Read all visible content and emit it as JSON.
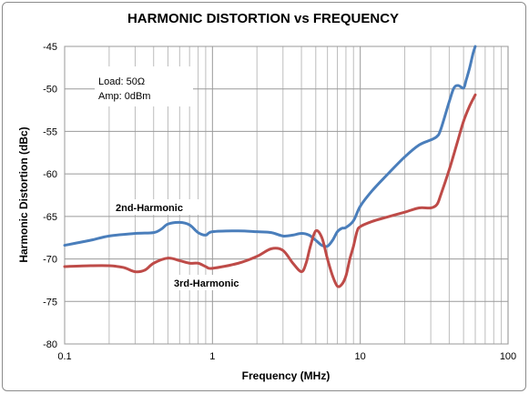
{
  "chart_data": {
    "type": "line",
    "title": "HARMONIC DISTORTION vs FREQUENCY",
    "xlabel": "Frequency (MHz)",
    "ylabel": "Harmonic Distortion (dBc)",
    "x_scale": "log",
    "xlim": [
      0.1,
      100
    ],
    "ylim": [
      -80,
      -45
    ],
    "x_ticks": [
      "0.1",
      "1",
      "10",
      "100"
    ],
    "y_ticks": [
      "-45",
      "-50",
      "-55",
      "-60",
      "-65",
      "-70",
      "-75",
      "-80"
    ],
    "grid": true,
    "annotations": [
      "Load: 50Ω",
      "Amp: 0dBm"
    ],
    "series": [
      {
        "name": "2nd-Harmonic",
        "color": "#4a7ebb",
        "points": [
          [
            0.1,
            -68.4
          ],
          [
            0.15,
            -67.8
          ],
          [
            0.2,
            -67.3
          ],
          [
            0.3,
            -67.0
          ],
          [
            0.4,
            -66.9
          ],
          [
            0.45,
            -66.5
          ],
          [
            0.5,
            -65.9
          ],
          [
            0.6,
            -65.7
          ],
          [
            0.7,
            -66.0
          ],
          [
            0.8,
            -66.9
          ],
          [
            0.9,
            -67.2
          ],
          [
            1.0,
            -66.8
          ],
          [
            1.5,
            -66.7
          ],
          [
            2.0,
            -66.8
          ],
          [
            2.5,
            -66.9
          ],
          [
            3.0,
            -67.3
          ],
          [
            3.5,
            -67.2
          ],
          [
            4.0,
            -67.0
          ],
          [
            4.5,
            -67.2
          ],
          [
            5.0,
            -67.8
          ],
          [
            5.5,
            -68.4
          ],
          [
            6.0,
            -68.5
          ],
          [
            6.5,
            -67.8
          ],
          [
            7.0,
            -66.8
          ],
          [
            7.5,
            -66.4
          ],
          [
            8.0,
            -66.3
          ],
          [
            9.0,
            -65.5
          ],
          [
            10,
            -63.8
          ],
          [
            12,
            -62.0
          ],
          [
            15,
            -60.2
          ],
          [
            20,
            -58.0
          ],
          [
            25,
            -56.6
          ],
          [
            30,
            -56.0
          ],
          [
            33,
            -55.6
          ],
          [
            35,
            -54.8
          ],
          [
            40,
            -51.5
          ],
          [
            43,
            -49.9
          ],
          [
            46,
            -49.6
          ],
          [
            50,
            -49.9
          ],
          [
            52,
            -49.0
          ],
          [
            55,
            -47.5
          ],
          [
            58,
            -45.8
          ],
          [
            60,
            -45.0
          ]
        ]
      },
      {
        "name": "3rd-Harmonic",
        "color": "#be4b48",
        "points": [
          [
            0.1,
            -70.9
          ],
          [
            0.15,
            -70.8
          ],
          [
            0.2,
            -70.8
          ],
          [
            0.25,
            -71.0
          ],
          [
            0.3,
            -71.5
          ],
          [
            0.35,
            -71.3
          ],
          [
            0.4,
            -70.5
          ],
          [
            0.5,
            -69.9
          ],
          [
            0.6,
            -70.2
          ],
          [
            0.7,
            -70.5
          ],
          [
            0.8,
            -70.5
          ],
          [
            0.9,
            -70.9
          ],
          [
            1.0,
            -71.1
          ],
          [
            1.5,
            -70.5
          ],
          [
            2.0,
            -69.7
          ],
          [
            2.5,
            -68.8
          ],
          [
            3.0,
            -69.0
          ],
          [
            3.5,
            -70.5
          ],
          [
            4.0,
            -71.5
          ],
          [
            4.3,
            -70.5
          ],
          [
            4.6,
            -68.5
          ],
          [
            5.0,
            -66.7
          ],
          [
            5.5,
            -67.5
          ],
          [
            6.0,
            -70.0
          ],
          [
            6.5,
            -72.0
          ],
          [
            7.0,
            -73.2
          ],
          [
            7.5,
            -73.0
          ],
          [
            8.0,
            -72.0
          ],
          [
            8.5,
            -70.0
          ],
          [
            9.0,
            -68.5
          ],
          [
            9.5,
            -66.8
          ],
          [
            10,
            -66.2
          ],
          [
            12,
            -65.6
          ],
          [
            15,
            -65.1
          ],
          [
            20,
            -64.5
          ],
          [
            25,
            -64.0
          ],
          [
            30,
            -64.0
          ],
          [
            33,
            -63.6
          ],
          [
            35,
            -62.5
          ],
          [
            40,
            -59.5
          ],
          [
            45,
            -56.5
          ],
          [
            50,
            -53.8
          ],
          [
            55,
            -52.0
          ],
          [
            60,
            -50.7
          ]
        ]
      }
    ]
  }
}
